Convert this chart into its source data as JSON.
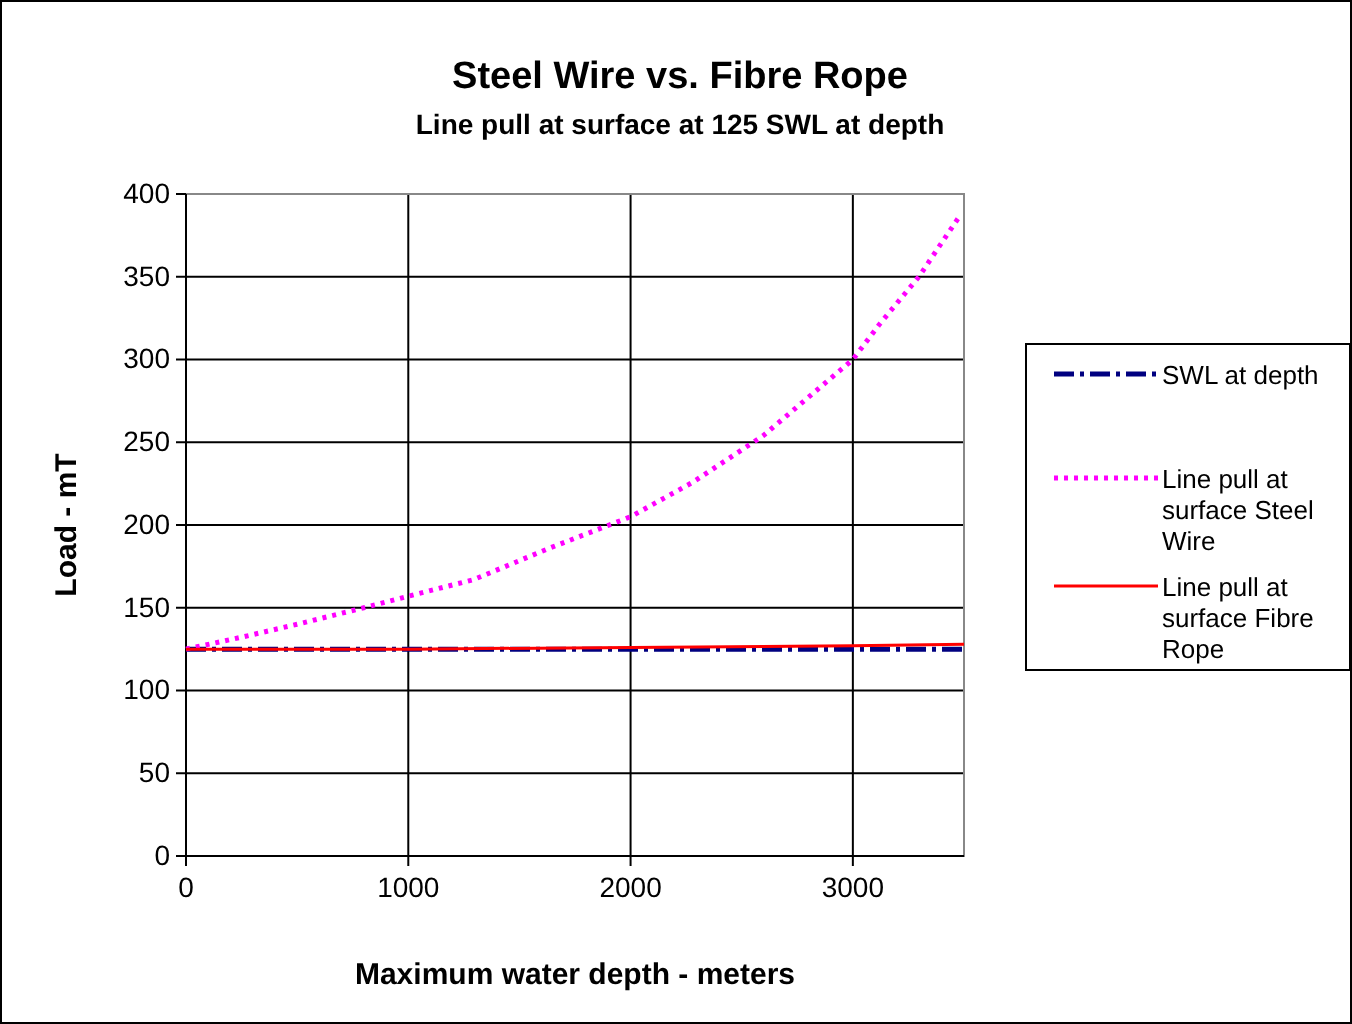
{
  "chart_data": {
    "type": "line",
    "title": "Steel Wire vs. Fibre Rope",
    "subtitle": "Line pull at surface at 125 SWL at depth",
    "xlabel": "Maximum water depth - meters",
    "ylabel": "Load - mT",
    "xlim": [
      0,
      3500
    ],
    "xticks": [
      0,
      1000,
      2000,
      3000
    ],
    "ylim": [
      0,
      400
    ],
    "yticks": [
      0,
      50,
      100,
      150,
      200,
      250,
      300,
      350,
      400
    ],
    "grid": true,
    "legend": "right",
    "marker": "none",
    "series": [
      {
        "name": "SWL at depth",
        "color": "#000080",
        "line_style": "dashdot",
        "x": [
          0,
          3500
        ],
        "values": [
          125,
          125
        ]
      },
      {
        "name": "Line pull at surface Steel Wire",
        "color": "#ff00ff",
        "line_style": "dotted",
        "x": [
          0,
          243,
          500,
          800,
          1000,
          1294,
          1635,
          2000,
          2282,
          2597,
          3000,
          3118,
          3297,
          3477
        ],
        "values": [
          125,
          132,
          140,
          150,
          157,
          167,
          186,
          205,
          226,
          254,
          300,
          321,
          350,
          386
        ]
      },
      {
        "name": "Line pull at surface Fibre Rope",
        "color": "#ff0000",
        "line_style": "solid",
        "x": [
          0,
          1000,
          2000,
          3000,
          3500
        ],
        "values": [
          125,
          125,
          126,
          127,
          128
        ]
      }
    ]
  }
}
